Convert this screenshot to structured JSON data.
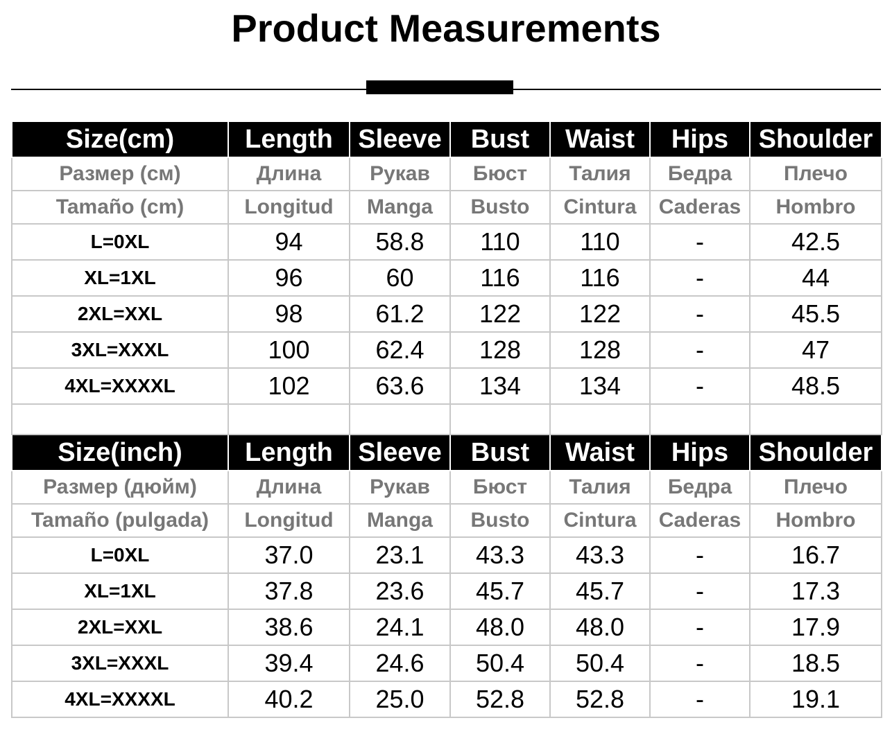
{
  "title": "Product Measurements",
  "tables": [
    {
      "header": [
        "Size(cm)",
        "Length",
        "Sleeve",
        "Bust",
        "Waist",
        "Hips",
        "Shoulder"
      ],
      "russian": [
        "Размер (см)",
        "Длина",
        "Рукав",
        "Бюст",
        "Талия",
        "Бедра",
        "Плечо"
      ],
      "spanish": [
        "Tamaño (cm)",
        "Longitud",
        "Manga",
        "Busto",
        "Cintura",
        "Caderas",
        "Hombro"
      ],
      "rows": [
        [
          "L=0XL",
          "94",
          "58.8",
          "110",
          "110",
          "-",
          "42.5"
        ],
        [
          "XL=1XL",
          "96",
          "60",
          "116",
          "116",
          "-",
          "44"
        ],
        [
          "2XL=XXL",
          "98",
          "61.2",
          "122",
          "122",
          "-",
          "45.5"
        ],
        [
          "3XL=XXXL",
          "100",
          "62.4",
          "128",
          "128",
          "-",
          "47"
        ],
        [
          "4XL=XXXXL",
          "102",
          "63.6",
          "134",
          "134",
          "-",
          "48.5"
        ]
      ]
    },
    {
      "header": [
        "Size(inch)",
        "Length",
        "Sleeve",
        "Bust",
        "Waist",
        "Hips",
        "Shoulder"
      ],
      "russian": [
        "Размер (дюйм)",
        "Длина",
        "Рукав",
        "Бюст",
        "Талия",
        "Бедра",
        "Плечо"
      ],
      "spanish": [
        "Tamaño (pulgada)",
        "Longitud",
        "Manga",
        "Busto",
        "Cintura",
        "Caderas",
        "Hombro"
      ],
      "rows": [
        [
          "L=0XL",
          "37.0",
          "23.1",
          "43.3",
          "43.3",
          "-",
          "16.7"
        ],
        [
          "XL=1XL",
          "37.8",
          "23.6",
          "45.7",
          "45.7",
          "-",
          "17.3"
        ],
        [
          "2XL=XXL",
          "38.6",
          "24.1",
          "48.0",
          "48.0",
          "-",
          "17.9"
        ],
        [
          "3XL=XXXL",
          "39.4",
          "24.6",
          "50.4",
          "50.4",
          "-",
          "18.5"
        ],
        [
          "4XL=XXXXL",
          "40.2",
          "25.0",
          "52.8",
          "52.8",
          "-",
          "19.1"
        ]
      ]
    }
  ]
}
